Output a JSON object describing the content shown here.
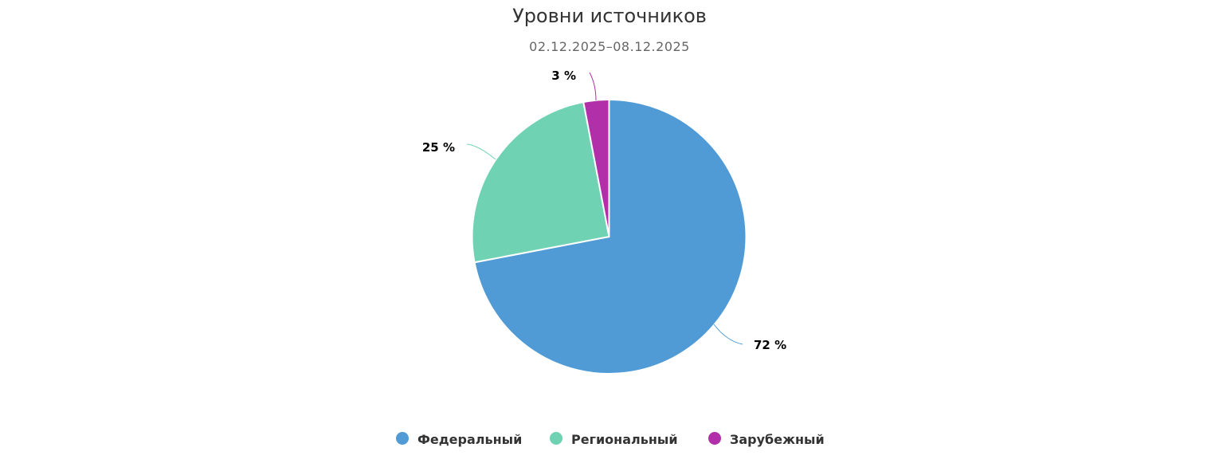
{
  "chart_data": {
    "type": "pie",
    "title": "Уровни источников",
    "subtitle": "02.12.2025–08.12.2025",
    "categories": [
      "Федеральный",
      "Региональный",
      "Зарубежный"
    ],
    "values": [
      72,
      25,
      3
    ],
    "data_labels": [
      "72 %",
      "25 %",
      "3 %"
    ],
    "colors": [
      "#509bd6",
      "#6fd3b3",
      "#b12fa8"
    ],
    "legend_position": "bottom-center"
  }
}
